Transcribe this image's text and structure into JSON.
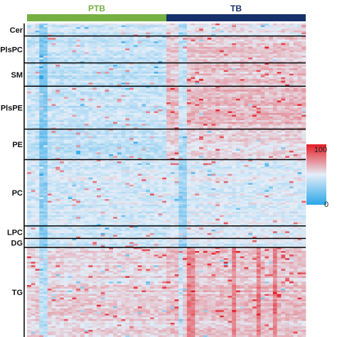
{
  "chart_data": {
    "type": "heatmap",
    "title": "",
    "xlabel": "",
    "ylabel": "",
    "groups": [
      {
        "name": "PTB",
        "color": "#76b043",
        "columns": 34
      },
      {
        "name": "TB",
        "color": "#16306b",
        "columns": 34
      }
    ],
    "lipid_classes": [
      {
        "name": "Cer",
        "rows": 7
      },
      {
        "name": "PlsPC",
        "rows": 15
      },
      {
        "name": "SM",
        "rows": 13
      },
      {
        "name": "PlsPE",
        "rows": 24
      },
      {
        "name": "PE",
        "rows": 17
      },
      {
        "name": "PC",
        "rows": 37
      },
      {
        "name": "LPC",
        "rows": 7
      },
      {
        "name": "DG",
        "rows": 5
      },
      {
        "name": "TG",
        "rows": 50
      }
    ],
    "colorscale": {
      "min": 0,
      "max": 100,
      "min_label": "0",
      "max_label": "100",
      "low_color": "#2aa6e8",
      "mid_color": "#e4eef8",
      "high_color": "#e61c24"
    },
    "values_note": "Cell values are relative intensity on a 0-100 scale; mostly light blue (~35-50) with red enrichment in the TB group for PlsPC, SM, PlsPE, PE and in the TG block for both groups."
  }
}
